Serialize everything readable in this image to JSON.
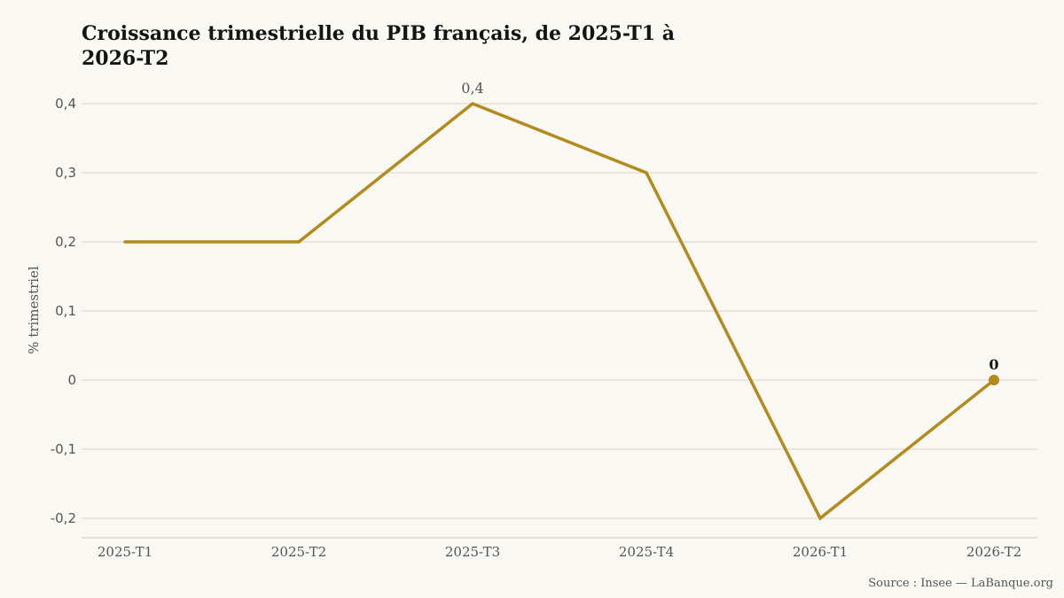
{
  "chart_data": {
    "type": "line",
    "title": "Croissance trimestrielle du PIB français, de 2025-T1 à 2026-T2",
    "ylabel": "% trimestriel",
    "xlabel": "",
    "categories": [
      "2025-T1",
      "2025-T2",
      "2025-T3",
      "2025-T4",
      "2026-T1",
      "2026-T2"
    ],
    "series": [
      {
        "values": [
          0.2,
          0.2,
          0.4,
          0.3,
          -0.2,
          0
        ]
      }
    ],
    "ylim": [
      -0.2,
      0.4
    ],
    "yticks": [
      -0.2,
      -0.1,
      0,
      0.1,
      0.2,
      0.3,
      0.4
    ],
    "ytick_labels": [
      "-0,2",
      "-0,1",
      "0",
      "0,1",
      "0,2",
      "0,3",
      "0,4"
    ],
    "data_labels": [
      {
        "category": "2025-T3",
        "text": "0,4",
        "emphasis": false
      },
      {
        "category": "2026-T2",
        "text": "0",
        "emphasis": true
      }
    ],
    "grid": true,
    "line_color": "#b38a1c",
    "source": "Source : Insee — LaBanque.org"
  }
}
